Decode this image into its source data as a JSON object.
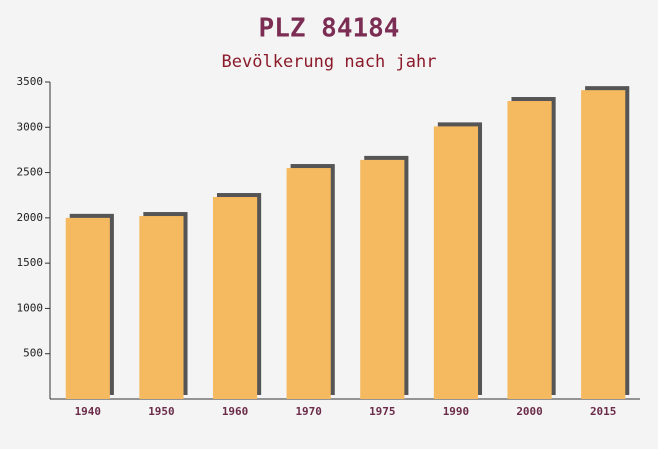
{
  "chart_data": {
    "type": "bar",
    "title": "PLZ 84184",
    "subtitle": "Bevölkerung nach jahr",
    "categories": [
      "1940",
      "1950",
      "1960",
      "1970",
      "1975",
      "1990",
      "2000",
      "2015"
    ],
    "values": [
      2000,
      2020,
      2230,
      2550,
      2640,
      3010,
      3290,
      3410
    ],
    "color": "#f5b95f",
    "ylim": [
      0,
      3500
    ],
    "yticks": [
      500,
      1000,
      1500,
      2000,
      2500,
      3000,
      3500
    ],
    "grid": false
  }
}
